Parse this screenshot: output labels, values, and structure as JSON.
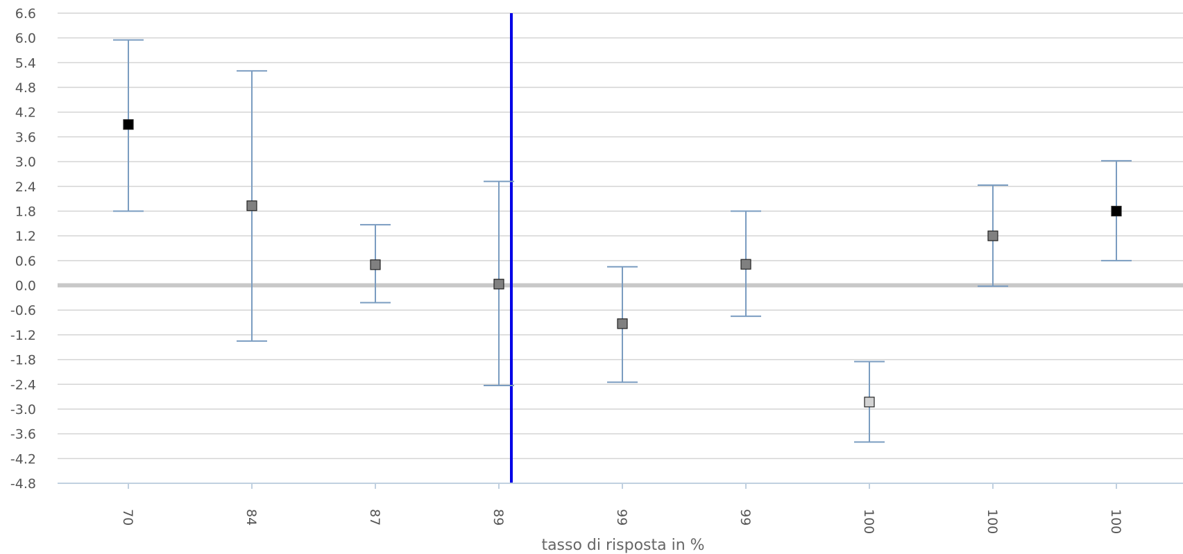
{
  "chart_data": {
    "type": "scatter",
    "title": "",
    "xlabel": "tasso di risposta in %",
    "ylabel": "",
    "ylim": [
      -4.8,
      6.6
    ],
    "yticks": [
      "6.6",
      "6.0",
      "5.4",
      "4.8",
      "4.2",
      "3.6",
      "3.0",
      "2.4",
      "1.8",
      "1.2",
      "0.6",
      "0.0",
      "-0.6",
      "-1.2",
      "-1.8",
      "-2.4",
      "-3.0",
      "-3.6",
      "-4.2",
      "-4.8"
    ],
    "grid": true,
    "reference_line_y": 0,
    "vertical_marker_after_category_index": 3,
    "categories": [
      "70",
      "84",
      "87",
      "89",
      "99",
      "99",
      "100",
      "100",
      "100"
    ],
    "points": [
      {
        "x": "70",
        "y": 3.9,
        "low": 1.8,
        "high": 5.95,
        "marker_color": "#000000"
      },
      {
        "x": "84",
        "y": 1.93,
        "low": -1.35,
        "high": 5.2,
        "marker_color": "#808080"
      },
      {
        "x": "87",
        "y": 0.5,
        "low": -0.42,
        "high": 1.47,
        "marker_color": "#808080"
      },
      {
        "x": "89",
        "y": 0.03,
        "low": -2.43,
        "high": 2.52,
        "marker_color": "#808080"
      },
      {
        "x": "99",
        "y": -0.93,
        "low": -2.35,
        "high": 0.45,
        "marker_color": "#808080"
      },
      {
        "x": "99",
        "y": 0.51,
        "low": -0.75,
        "high": 1.8,
        "marker_color": "#808080"
      },
      {
        "x": "100",
        "y": -2.83,
        "low": -3.8,
        "high": -1.85,
        "marker_color": "#d3d3d3"
      },
      {
        "x": "100",
        "y": 1.2,
        "low": -0.02,
        "high": 2.43,
        "marker_color": "#808080"
      },
      {
        "x": "100",
        "y": 1.8,
        "low": 0.6,
        "high": 3.02,
        "marker_color": "#000000"
      }
    ],
    "colors": {
      "error_bar": "#7a9cc0",
      "grid": "#d4d4d4",
      "zero_line": "#c8c8c8",
      "vertical_marker": "#0000e6",
      "axis": "#c0d0e0"
    }
  }
}
